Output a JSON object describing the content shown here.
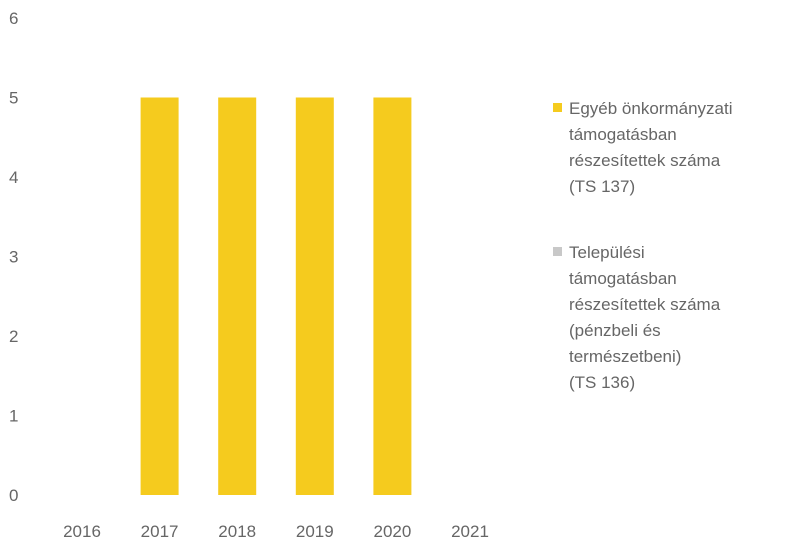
{
  "chart_data": {
    "type": "bar",
    "categories": [
      "2016",
      "2017",
      "2018",
      "2019",
      "2020",
      "2021"
    ],
    "series": [
      {
        "name": "Egyéb önkormányzati\ntámogatásban\nrészesítettek száma\n(TS 137)",
        "values": [
          0,
          5,
          5,
          5,
          5,
          0
        ],
        "color": "#F5CB1E"
      },
      {
        "name": "Települési\ntámogatásban\nrészesítettek száma\n(pénzbeli és\ntermészetbeni)\n(TS 136)",
        "values": [
          0,
          0,
          0,
          0,
          0,
          0
        ],
        "color": "#C8C8C8"
      }
    ],
    "ylim": [
      0,
      6
    ],
    "yticks": [
      "0",
      "1",
      "2",
      "3",
      "4",
      "5",
      "6"
    ],
    "stacked": true,
    "grid": false,
    "legend": "right"
  }
}
